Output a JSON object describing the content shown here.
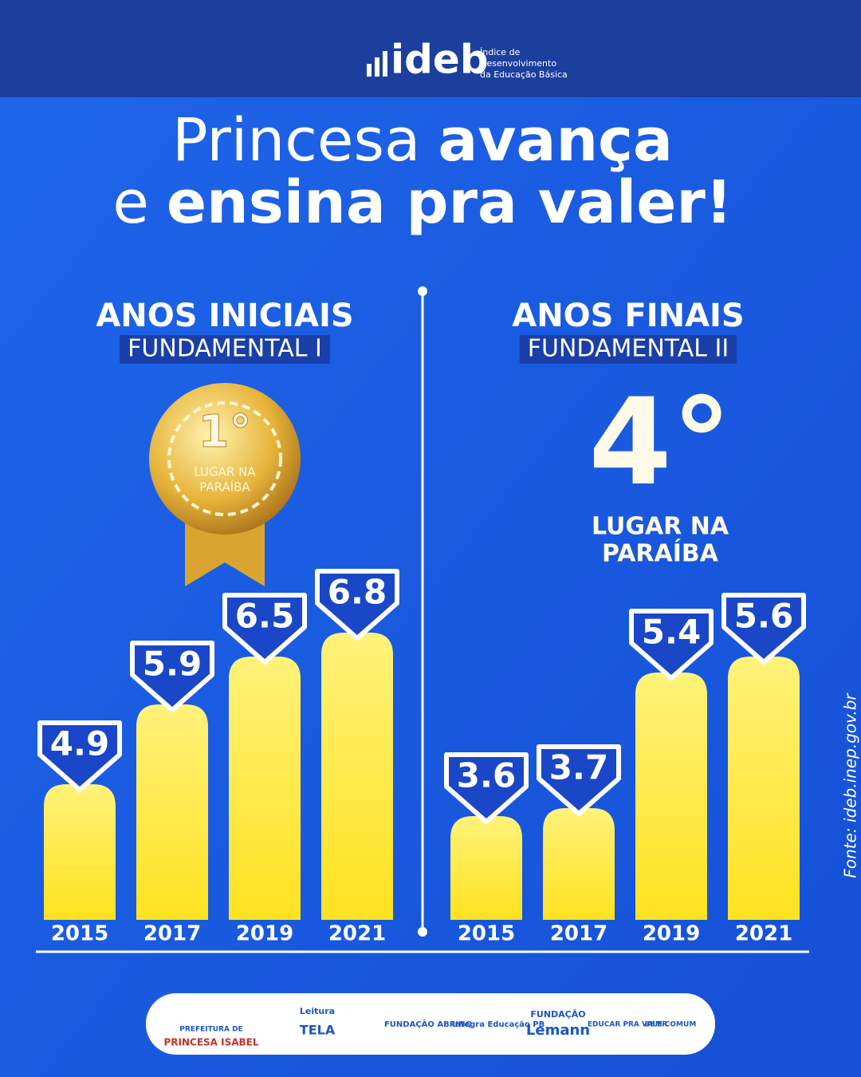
{
  "header": {
    "logo": "ideb",
    "logo_caption": [
      "Índice de",
      "Desenvolvimento",
      "da Educação Básica"
    ]
  },
  "title": {
    "line1": [
      "Princesa",
      "avança"
    ],
    "line2": [
      "e",
      "ensina pra valer!"
    ]
  },
  "chart_data": [
    {
      "type": "bar",
      "title": "ANOS INICIAIS",
      "subtitle": "FUNDAMENTAL I",
      "rank": "1°",
      "rank_caption": [
        "LUGAR NA",
        "PARAÍBA"
      ],
      "categories": [
        "2015",
        "2017",
        "2019",
        "2021"
      ],
      "values": [
        4.9,
        5.9,
        6.5,
        6.8
      ],
      "color": "#ffe94d",
      "ylim": [
        3.2,
        7.2
      ]
    },
    {
      "type": "bar",
      "title": "ANOS FINAIS",
      "subtitle": "FUNDAMENTAL II",
      "rank": "4°",
      "rank_caption": [
        "LUGAR NA",
        "PARAÍBA"
      ],
      "categories": [
        "2015",
        "2017",
        "2019",
        "2021"
      ],
      "values": [
        3.6,
        3.7,
        5.4,
        5.6
      ],
      "color": "#ffe94d",
      "ylim": [
        2.3,
        6.3
      ]
    }
  ],
  "source": "Fonte: ideb.inep.gov.br",
  "footer": {
    "logos": [
      "PREFEITURA DE",
      "PRINCESA ISABEL",
      "Leitura",
      "TELA",
      "FUNDAÇÃO ABRINQ",
      "Integra Educação PB",
      "FUNDAÇÃO",
      "Lemann",
      "EDUCAR PRA VALER",
      "BEM COMUM"
    ]
  }
}
